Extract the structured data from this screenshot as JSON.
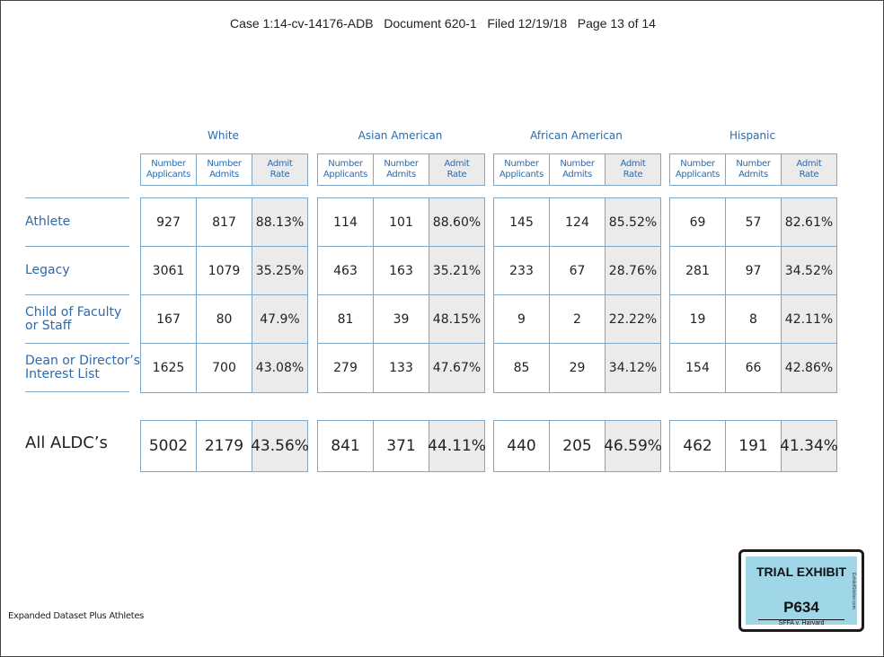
{
  "header": "Case 1:14-cv-14176-ADB   Document 620-1   Filed 12/19/18   Page 13 of 14",
  "column_labels": {
    "applicants": "Number\nApplicants",
    "admits": "Number\nAdmits",
    "rate": "Admit\nRate"
  },
  "groups": [
    {
      "name": "White",
      "rows": [
        [
          "927",
          "817",
          "88.13%"
        ],
        [
          "3061",
          "1079",
          "35.25%"
        ],
        [
          "167",
          "80",
          "47.9%"
        ],
        [
          "1625",
          "700",
          "43.08%"
        ]
      ],
      "total": [
        "5002",
        "2179",
        "43.56%"
      ]
    },
    {
      "name": "Asian American",
      "rows": [
        [
          "114",
          "101",
          "88.60%"
        ],
        [
          "463",
          "163",
          "35.21%"
        ],
        [
          "81",
          "39",
          "48.15%"
        ],
        [
          "279",
          "133",
          "47.67%"
        ]
      ],
      "total": [
        "841",
        "371",
        "44.11%"
      ]
    },
    {
      "name": "African American",
      "rows": [
        [
          "145",
          "124",
          "85.52%"
        ],
        [
          "233",
          "67",
          "28.76%"
        ],
        [
          "9",
          "2",
          "22.22%"
        ],
        [
          "85",
          "29",
          "34.12%"
        ]
      ],
      "total": [
        "440",
        "205",
        "46.59%"
      ]
    },
    {
      "name": "Hispanic",
      "rows": [
        [
          "69",
          "57",
          "82.61%"
        ],
        [
          "281",
          "97",
          "34.52%"
        ],
        [
          "19",
          "8",
          "42.11%"
        ],
        [
          "154",
          "66",
          "42.86%"
        ]
      ],
      "total": [
        "462",
        "191",
        "41.34%"
      ]
    }
  ],
  "row_labels": [
    "Athlete",
    "Legacy",
    "Child of Faculty\nor Staff",
    "Dean or Director’s\nInterest List"
  ],
  "total_label": "All ALDC’s",
  "footnote": "Expanded Dataset Plus Athletes",
  "exhibit": {
    "title": "TRIAL EXHIBIT",
    "number": "P634",
    "case": "SFFA v. Harvard",
    "side_text": "ExhibitSticker.com"
  }
}
